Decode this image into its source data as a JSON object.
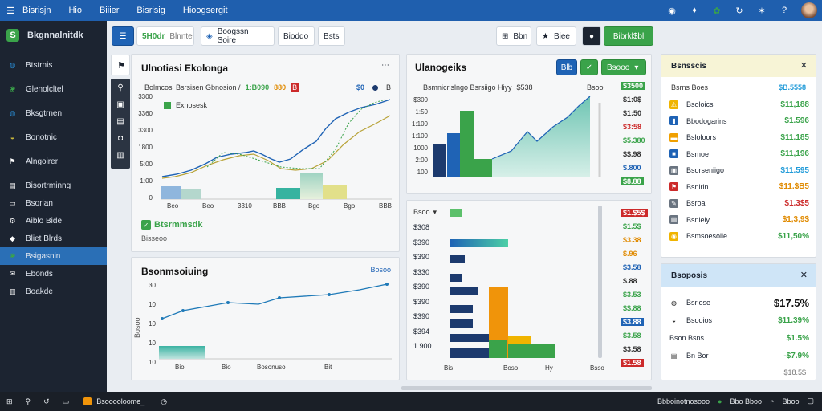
{
  "topbar": {
    "menu": [
      "Bisrisjn",
      "Hio",
      "Biiier",
      "Bisrisig",
      "Hioogsergit"
    ],
    "icons": [
      "user-circle-icon",
      "bell-icon",
      "app-icon",
      "refresh-icon",
      "gear-icon",
      "help-icon"
    ]
  },
  "sidebar": {
    "brand": "Bkgnnalnitdk",
    "items": [
      {
        "label": "Btstrnis",
        "icon": "globe-icon",
        "color": "#2a8fd8"
      },
      {
        "label": "Glenolcltel",
        "icon": "leaf-icon",
        "color": "#3aa34a"
      },
      {
        "label": "Bksgtrnen",
        "icon": "globe-icon",
        "color": "#2a8fd8"
      },
      {
        "label": "Bonotnic",
        "icon": "chat-icon",
        "color": "#c8b63a"
      },
      {
        "label": "Alngoirer",
        "icon": "flag-icon",
        "color": "#ffffff"
      },
      {
        "label": "Bisortrminng",
        "icon": "list-icon",
        "color": "#ffffff"
      },
      {
        "label": "Bsorian",
        "icon": "monitor-icon",
        "color": "#ffffff"
      },
      {
        "label": "Aiblo Bide",
        "icon": "gear-icon",
        "color": "#ffffff"
      },
      {
        "label": "Bliet Blrds",
        "icon": "tag-icon",
        "color": "#ffffff"
      },
      {
        "label": "Bsigasnin",
        "icon": "leaf-icon",
        "color": "#3aa34a",
        "active": true
      },
      {
        "label": "Ebonds",
        "icon": "mail-icon",
        "color": "#ffffff"
      },
      {
        "label": "Boakde",
        "icon": "chart-icon",
        "color": "#ffffff"
      }
    ]
  },
  "toolbar": {
    "b1": "5H0dr",
    "b1b": "Blnnte",
    "b2": "Boogssn Soire",
    "b3": "Bioddo",
    "b4": "Bsts",
    "r1": "Bbn",
    "r2": "Biee",
    "r3": "Bibrkl$bl"
  },
  "panel1": {
    "title": "Ulnotiasi Ekolonga",
    "subtitle": "Bolmcosi Bsrsisen  Gbnosion /",
    "sub_vals": [
      "1:B090",
      "880",
      "B"
    ],
    "legend_dollar": "$0",
    "legend_b": "B",
    "legend_item": "Exnosesk",
    "yticks": [
      "3300",
      "3360",
      "3300",
      "1800",
      "5:00",
      "1:00",
      "0"
    ],
    "xticks": [
      "Beo",
      "Beo",
      "3310",
      "BBB",
      "Bgo",
      "Bgo",
      "BBB"
    ],
    "footer_title": "Btsrmmsdk",
    "footer_sub": "Bisseoo"
  },
  "panel2": {
    "title": "Ulanogeiks",
    "subtitle": "Bsmnicrislngo Bsrsiigo  Hiyy",
    "sub_val": "$538",
    "sub_right": "Bsoo",
    "btn1": "Blb",
    "btn2": "Bsooo",
    "yticks": [
      "$300",
      "1:50",
      "1:100",
      "1:100",
      "1000",
      "2:00",
      "100"
    ],
    "right_values": [
      {
        "v": "$3500",
        "bg": "#3aa34a",
        "c": "#fff"
      },
      {
        "v": "$1:0$",
        "bg": "",
        "c": "#333"
      },
      {
        "v": "$1:50",
        "bg": "",
        "c": "#333"
      },
      {
        "v": "$3:58",
        "bg": "",
        "c": "#cc2a2a"
      },
      {
        "v": "$5.380",
        "bg": "",
        "c": "#3aa34a"
      },
      {
        "v": "$$.98",
        "bg": "",
        "c": "#333"
      },
      {
        "v": "$.800",
        "bg": "",
        "c": "#1f63b5"
      },
      {
        "v": "$8.88",
        "bg": "#3aa34a",
        "c": "#fff"
      }
    ]
  },
  "panel3": {
    "title": "Bsonmsoiuing",
    "title_right": "Bosoo",
    "yticks": [
      "30",
      "10",
      "10",
      "10",
      "10"
    ],
    "xticks": [
      "Bio",
      "Bio",
      "Bosonuso",
      "Bit"
    ],
    "side_label": "Bosoo"
  },
  "panel4": {
    "header_label": "Bsoo",
    "rows": [
      "$308",
      "$390",
      "$390",
      "$330",
      "$390",
      "$390",
      "$390",
      "$394",
      "1.900"
    ],
    "xticks": [
      "Bis",
      "Boso",
      "Hy",
      "Bsso"
    ],
    "right_values": [
      {
        "v": "$1.$5$",
        "bg": "#cc2a2a",
        "c": "#fff"
      },
      {
        "v": "$1.5$",
        "bg": "",
        "c": "#3aa34a"
      },
      {
        "v": "$3.38",
        "bg": "",
        "c": "#e08a00"
      },
      {
        "v": "$.96",
        "bg": "",
        "c": "#e08a00"
      },
      {
        "v": "$3.58",
        "bg": "",
        "c": "#1f63b5"
      },
      {
        "v": "$.88",
        "bg": "",
        "c": "#333"
      },
      {
        "v": "$3.53",
        "bg": "",
        "c": "#3aa34a"
      },
      {
        "v": "$$.88",
        "bg": "",
        "c": "#3aa34a"
      },
      {
        "v": "$3.88",
        "bg": "#1f63b5",
        "c": "#fff"
      },
      {
        "v": "$3.58",
        "bg": "",
        "c": "#3aa34a"
      },
      {
        "v": "$3.58",
        "bg": "",
        "c": "#333"
      },
      {
        "v": "$1.58",
        "bg": "#cc2a2a",
        "c": "#fff"
      }
    ]
  },
  "right_panel": {
    "title": "Bsnsscis",
    "header_l": "Bsrns Boes",
    "header_r": "$B.5558",
    "rows": [
      {
        "label": "Bsoloicsl",
        "value": "$11,188",
        "icon": "warning-icon",
        "ic_bg": "#f0b400",
        "vc": "#3aa34a"
      },
      {
        "label": "Bbodogarins",
        "value": "$1.596",
        "icon": "bookmark-icon",
        "ic_bg": "#1f63b5",
        "vc": "#3aa34a"
      },
      {
        "label": "Bsloloors",
        "value": "$11.185",
        "icon": "folder-icon",
        "ic_bg": "#f0a000",
        "vc": "#3aa34a"
      },
      {
        "label": "Bsmoe",
        "value": "$11,196",
        "icon": "square-icon",
        "ic_bg": "#1f63b5",
        "vc": "#3aa34a"
      },
      {
        "label": "Bsorseniigo",
        "value": "$11.595",
        "icon": "image-icon",
        "ic_bg": "#6a7480",
        "vc": "#1f9ad8"
      },
      {
        "label": "Bsnirin",
        "value": "$11.$B5",
        "icon": "flag-icon",
        "ic_bg": "#cc2a2a",
        "vc": "#e08a00"
      },
      {
        "label": "Bsroa",
        "value": "$1.3$5",
        "icon": "edit-icon",
        "ic_bg": "#6a7480",
        "vc": "#cc2a2a"
      },
      {
        "label": "Bsnleiy",
        "value": "$1,3,9$",
        "icon": "doc-icon",
        "ic_bg": "#6a7480",
        "vc": "#e08a00"
      },
      {
        "label": "Bsmsoesoiie",
        "value": "$11,50%",
        "icon": "coin-icon",
        "ic_bg": "#f0b400",
        "vc": "#3aa34a"
      }
    ]
  },
  "right_panel2": {
    "title": "Bsoposis",
    "rows": [
      {
        "label": "Bsriose",
        "value": "$17.5%",
        "icon": "globe-icon",
        "vc": "#111"
      },
      {
        "label": "Bsooios",
        "value": "$11.39%",
        "icon": "chat-icon",
        "vc": "#3aa34a"
      },
      {
        "label": "Bson Bsns",
        "value": "$1.5%",
        "icon": "",
        "vc": "#3aa34a"
      },
      {
        "label": "Bn Bor",
        "value": "-$7.9%",
        "icon": "list-icon",
        "vc": "#3aa34a"
      }
    ],
    "footer": "$18.5$"
  },
  "taskbar": {
    "app_label": "Bsooooloome_",
    "status_items": [
      "Bbboinotnosooo",
      "Bbo Bboo",
      "Bboo"
    ]
  }
}
